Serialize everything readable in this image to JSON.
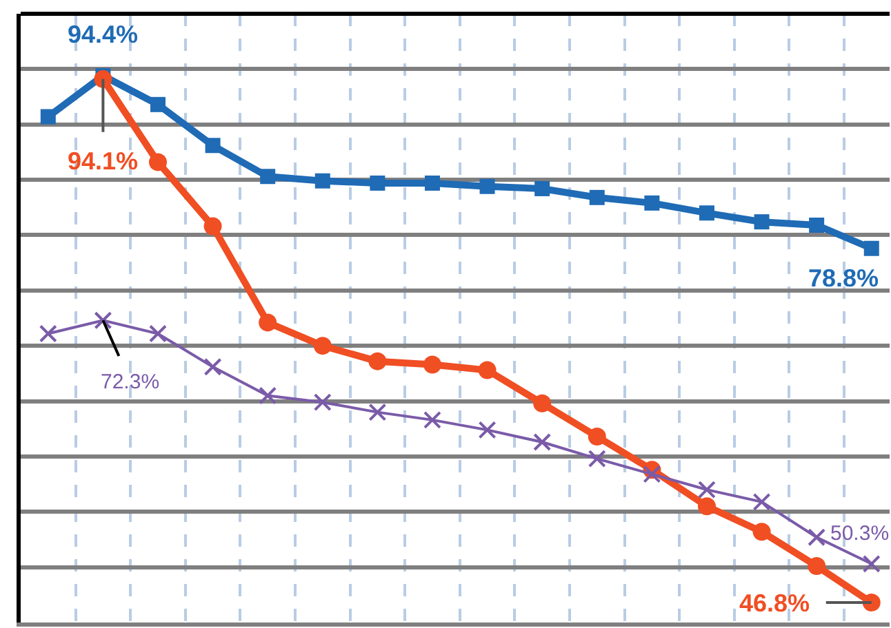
{
  "chart_data": {
    "type": "line",
    "categories": [
      null,
      null,
      null,
      null,
      null,
      null,
      null,
      null,
      null,
      null,
      null,
      null,
      null,
      null,
      null,
      null
    ],
    "ylim": [
      45,
      100
    ],
    "yticks": [
      {
        "value": 50,
        "label": null
      },
      {
        "value": 55,
        "label": null
      },
      {
        "value": 60,
        "label": null
      },
      {
        "value": 65,
        "label": null
      },
      {
        "value": 70,
        "label": null
      },
      {
        "value": 75,
        "label": null
      },
      {
        "value": 80,
        "label": null
      },
      {
        "value": 85,
        "label": null
      },
      {
        "value": 90,
        "label": null
      },
      {
        "value": 95,
        "label": null
      }
    ],
    "grid": true,
    "series": [
      {
        "color": "#1f6bb5",
        "marker": "square",
        "values": [
          90.7,
          94.4,
          91.8,
          88.1,
          85.3,
          84.9,
          84.7,
          84.7,
          84.4,
          84.2,
          83.4,
          82.9,
          82.0,
          81.2,
          80.9,
          78.8
        ],
        "value_labels": [
          null,
          "94.4%",
          null,
          null,
          null,
          null,
          null,
          null,
          null,
          null,
          null,
          null,
          null,
          null,
          null,
          "78.8%"
        ]
      },
      {
        "color": "#f04e23",
        "marker": "circle",
        "values": [
          null,
          94.1,
          86.6,
          80.8,
          72.1,
          70.0,
          68.6,
          68.3,
          67.8,
          64.8,
          61.8,
          58.8,
          55.5,
          53.2,
          50.1,
          46.8
        ],
        "value_labels": [
          null,
          "94.1%",
          null,
          null,
          null,
          null,
          null,
          null,
          null,
          null,
          null,
          null,
          null,
          null,
          null,
          "46.8%"
        ]
      },
      {
        "color": "#7a5ba8",
        "marker": "cross",
        "values": [
          71.1,
          72.3,
          71.1,
          68.1,
          65.5,
          64.9,
          64.0,
          63.3,
          62.4,
          61.3,
          59.8,
          58.4,
          57.0,
          55.9,
          52.7,
          50.3
        ],
        "value_labels": [
          null,
          "72.3%",
          null,
          null,
          null,
          null,
          null,
          null,
          null,
          null,
          null,
          null,
          null,
          null,
          null,
          "50.3%"
        ]
      }
    ]
  }
}
